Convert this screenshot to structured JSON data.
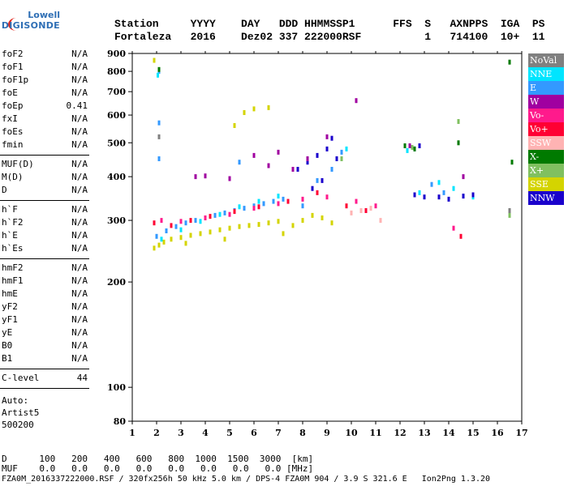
{
  "logo": {
    "line1": "Lowell",
    "line2": "DIGISONDE"
  },
  "header": {
    "labels": [
      "Station",
      "YYYY",
      "DAY",
      "DDD",
      "HHMMSS",
      "P1",
      "FFS",
      "S",
      "AXN",
      "PPS",
      "IGA",
      "PS"
    ],
    "values": [
      "Fortaleza",
      "2016",
      "Dez02",
      "337",
      "222000",
      "RSF",
      "",
      "1",
      "714",
      "100",
      "10+",
      "11"
    ]
  },
  "params_group1": [
    {
      "name": "foF2",
      "value": "N/A"
    },
    {
      "name": "foF1",
      "value": "N/A"
    },
    {
      "name": "foF1p",
      "value": "N/A"
    },
    {
      "name": "foE",
      "value": "N/A"
    },
    {
      "name": "foEp",
      "value": "0.41"
    },
    {
      "name": "fxI",
      "value": "N/A"
    },
    {
      "name": "foEs",
      "value": "N/A"
    },
    {
      "name": "fmin",
      "value": "N/A"
    }
  ],
  "params_group2": [
    {
      "name": "MUF(D)",
      "value": "N/A"
    },
    {
      "name": "M(D)",
      "value": "N/A"
    },
    {
      "name": "D",
      "value": "N/A"
    }
  ],
  "params_group3": [
    {
      "name": "h`F",
      "value": "N/A"
    },
    {
      "name": "h`F2",
      "value": "N/A"
    },
    {
      "name": "h`E",
      "value": "N/A"
    },
    {
      "name": "h`Es",
      "value": "N/A"
    }
  ],
  "params_group4": [
    {
      "name": "hmF2",
      "value": "N/A"
    },
    {
      "name": "hmF1",
      "value": "N/A"
    },
    {
      "name": "hmE",
      "value": "N/A"
    },
    {
      "name": "yF2",
      "value": "N/A"
    },
    {
      "name": "yF1",
      "value": "N/A"
    },
    {
      "name": "yE",
      "value": "N/A"
    },
    {
      "name": "B0",
      "value": "N/A"
    },
    {
      "name": "B1",
      "value": "N/A"
    }
  ],
  "clevel": {
    "name": "C-level",
    "value": "44"
  },
  "auto": [
    "Auto:",
    "Artist5",
    "500200"
  ],
  "legend": [
    {
      "label": "NoVal",
      "bg": "#808080",
      "fg": "#ffffff"
    },
    {
      "label": "NNE",
      "bg": "#00e5ff",
      "fg": "#ffffff"
    },
    {
      "label": "E",
      "bg": "#3399ff",
      "fg": "#ffffff"
    },
    {
      "label": "W",
      "bg": "#a000a0",
      "fg": "#ffffff"
    },
    {
      "label": "Vo-",
      "bg": "#ff1a8c",
      "fg": "#ffffff"
    },
    {
      "label": "Vo+",
      "bg": "#ff0033",
      "fg": "#ffffff"
    },
    {
      "label": "SSW",
      "bg": "#ffb3b3",
      "fg": "#ffffff"
    },
    {
      "label": "X-",
      "bg": "#007a00",
      "fg": "#ffffff"
    },
    {
      "label": "X+",
      "bg": "#80c060",
      "fg": "#ffffff"
    },
    {
      "label": "SSE",
      "bg": "#d4d400",
      "fg": "#ffffff"
    },
    {
      "label": "NNW",
      "bg": "#1a00cc",
      "fg": "#ffffff"
    }
  ],
  "footer": {
    "d_label": "D",
    "d_values": [
      "100",
      "200",
      "400",
      "600",
      "800",
      "1000",
      "1500",
      "3000",
      "[km]"
    ],
    "muf_label": "MUF",
    "muf_values": [
      "0.0",
      "0.0",
      "0.0",
      "0.0",
      "0.0",
      "0.0",
      "0.0",
      "0.0",
      "[MHz]"
    ],
    "info": "FZA0M_2016337222000.RSF / 320fx256h 50 kHz 5.0 km / DPS-4 FZA0M 904 / 3.9 S 321.6 E   Ion2Png 1.3.20"
  },
  "chart_data": {
    "type": "scatter",
    "title": "",
    "xlabel": "",
    "ylabel": "",
    "xlim": [
      1,
      17
    ],
    "ylim": [
      80,
      900
    ],
    "yscale": "log",
    "x_ticks": [
      1,
      2,
      3,
      4,
      5,
      6,
      7,
      8,
      9,
      10,
      11,
      12,
      13,
      14,
      15,
      16,
      17
    ],
    "y_ticks": [
      80,
      100,
      200,
      300,
      400,
      500,
      600,
      700,
      800,
      900
    ],
    "series": [
      {
        "name": "SSE",
        "color": "#d4d400",
        "points": [
          [
            1.9,
            250
          ],
          [
            2.1,
            255
          ],
          [
            2.3,
            260
          ],
          [
            2.6,
            265
          ],
          [
            3.0,
            268
          ],
          [
            3.4,
            272
          ],
          [
            3.8,
            275
          ],
          [
            4.2,
            278
          ],
          [
            4.6,
            282
          ],
          [
            5.0,
            285
          ],
          [
            5.4,
            288
          ],
          [
            5.8,
            290
          ],
          [
            6.2,
            292
          ],
          [
            6.6,
            295
          ],
          [
            7.0,
            298
          ],
          [
            1.9,
            860
          ],
          [
            5.2,
            560
          ],
          [
            5.6,
            610
          ],
          [
            6.0,
            625
          ],
          [
            6.6,
            630
          ],
          [
            7.2,
            275
          ],
          [
            7.6,
            290
          ],
          [
            8.0,
            300
          ],
          [
            8.4,
            310
          ],
          [
            8.8,
            305
          ],
          [
            9.2,
            295
          ],
          [
            4.8,
            265
          ],
          [
            3.2,
            258
          ]
        ]
      },
      {
        "name": "E",
        "color": "#3399ff",
        "points": [
          [
            2.0,
            270
          ],
          [
            2.4,
            280
          ],
          [
            2.8,
            288
          ],
          [
            3.2,
            295
          ],
          [
            3.6,
            300
          ],
          [
            4.0,
            305
          ],
          [
            4.4,
            310
          ],
          [
            4.8,
            315
          ],
          [
            5.2,
            320
          ],
          [
            5.6,
            325
          ],
          [
            6.0,
            330
          ],
          [
            6.4,
            335
          ],
          [
            6.8,
            340
          ],
          [
            7.2,
            345
          ],
          [
            2.1,
            800
          ],
          [
            2.1,
            450
          ],
          [
            2.1,
            570
          ],
          [
            5.4,
            440
          ],
          [
            8.0,
            330
          ],
          [
            8.6,
            390
          ],
          [
            9.2,
            420
          ],
          [
            9.6,
            470
          ],
          [
            12.6,
            480
          ],
          [
            13.3,
            380
          ],
          [
            13.8,
            360
          ]
        ]
      },
      {
        "name": "NNE",
        "color": "#00e5ff",
        "points": [
          [
            2.2,
            265
          ],
          [
            3.0,
            282
          ],
          [
            3.8,
            298
          ],
          [
            4.6,
            312
          ],
          [
            5.4,
            328
          ],
          [
            6.2,
            340
          ],
          [
            7.0,
            352
          ],
          [
            2.05,
            780
          ],
          [
            9.8,
            480
          ],
          [
            12.3,
            475
          ],
          [
            12.8,
            360
          ],
          [
            13.6,
            385
          ],
          [
            14.2,
            370
          ],
          [
            15.0,
            350
          ]
        ]
      },
      {
        "name": "NNW",
        "color": "#1a00cc",
        "points": [
          [
            7.8,
            420
          ],
          [
            8.2,
            440
          ],
          [
            8.6,
            460
          ],
          [
            9.0,
            480
          ],
          [
            9.4,
            450
          ],
          [
            8.4,
            370
          ],
          [
            8.8,
            390
          ],
          [
            12.6,
            355
          ],
          [
            13.0,
            350
          ],
          [
            13.6,
            350
          ],
          [
            14.0,
            345
          ],
          [
            14.6,
            352
          ],
          [
            15.0,
            355
          ],
          [
            9.2,
            515
          ],
          [
            12.8,
            490
          ]
        ]
      },
      {
        "name": "W",
        "color": "#a000a0",
        "points": [
          [
            3.6,
            400
          ],
          [
            4.0,
            402
          ],
          [
            5.0,
            395
          ],
          [
            6.0,
            460
          ],
          [
            6.6,
            430
          ],
          [
            7.0,
            470
          ],
          [
            7.6,
            420
          ],
          [
            8.2,
            450
          ],
          [
            9.0,
            520
          ],
          [
            14.6,
            400
          ],
          [
            10.2,
            660
          ],
          [
            12.4,
            490
          ]
        ]
      },
      {
        "name": "Vo-",
        "color": "#ff1a8c",
        "points": [
          [
            2.2,
            300
          ],
          [
            3.0,
            298
          ],
          [
            4.0,
            305
          ],
          [
            5.0,
            312
          ],
          [
            6.0,
            325
          ],
          [
            7.0,
            335
          ],
          [
            8.0,
            345
          ],
          [
            9.0,
            350
          ],
          [
            10.2,
            340
          ],
          [
            11.0,
            330
          ],
          [
            14.2,
            285
          ]
        ]
      },
      {
        "name": "Vo+",
        "color": "#ff0033",
        "points": [
          [
            1.9,
            295
          ],
          [
            2.6,
            290
          ],
          [
            3.4,
            300
          ],
          [
            4.2,
            308
          ],
          [
            5.2,
            318
          ],
          [
            6.2,
            328
          ],
          [
            7.4,
            340
          ],
          [
            8.6,
            360
          ],
          [
            9.8,
            330
          ],
          [
            10.6,
            320
          ],
          [
            14.5,
            270
          ]
        ]
      },
      {
        "name": "SSW",
        "color": "#ffb3b3",
        "points": [
          [
            10.0,
            315
          ],
          [
            10.4,
            320
          ],
          [
            10.8,
            325
          ],
          [
            11.2,
            300
          ]
        ]
      },
      {
        "name": "X-",
        "color": "#007a00",
        "points": [
          [
            2.1,
            810
          ],
          [
            12.2,
            490
          ],
          [
            12.6,
            480
          ],
          [
            14.4,
            500
          ],
          [
            16.6,
            440
          ],
          [
            16.5,
            850
          ]
        ]
      },
      {
        "name": "X+",
        "color": "#80c060",
        "points": [
          [
            9.6,
            450
          ],
          [
            12.5,
            485
          ],
          [
            14.4,
            575
          ],
          [
            16.5,
            310
          ]
        ]
      },
      {
        "name": "NoVal",
        "color": "#808080",
        "points": [
          [
            2.1,
            520
          ],
          [
            16.5,
            320
          ]
        ]
      }
    ]
  }
}
